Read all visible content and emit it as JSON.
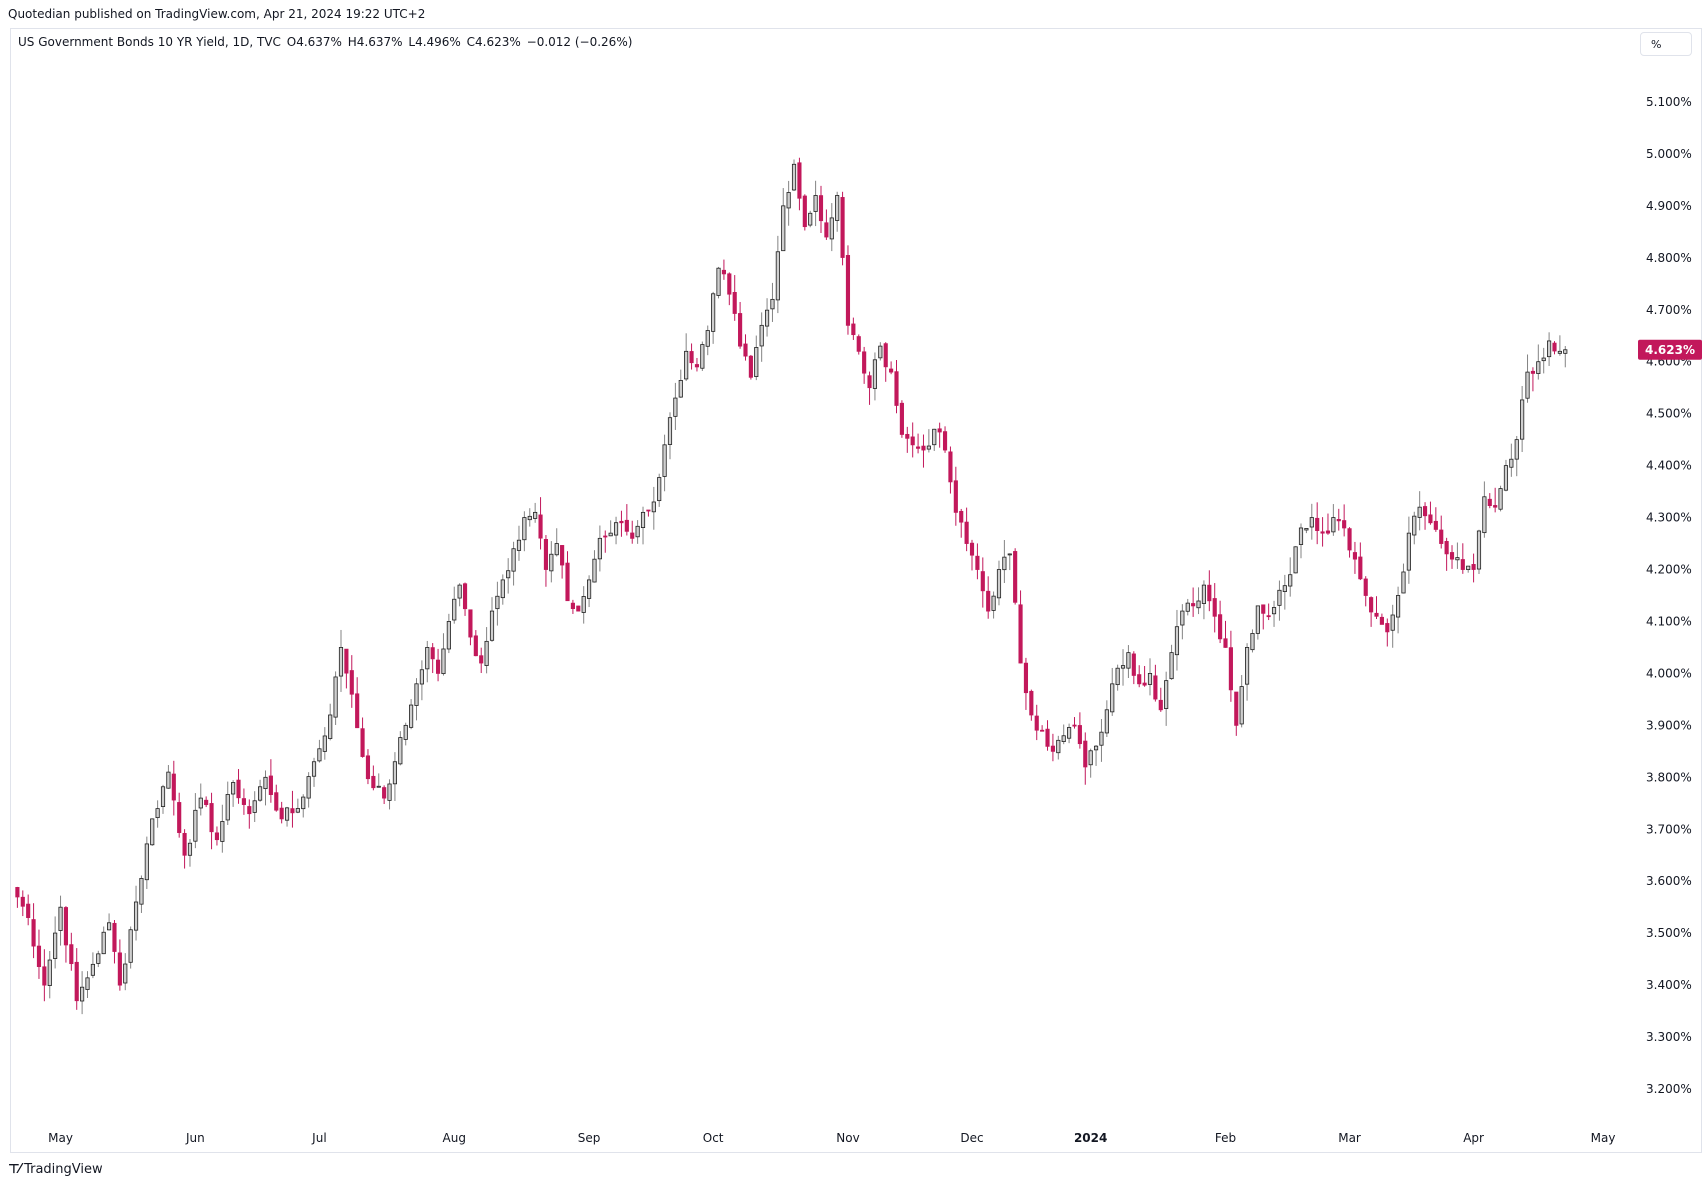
{
  "header": {
    "published": "Quotedian published on TradingView.com, Apr 21, 2024 19:22 UTC+2"
  },
  "legend": {
    "symbol": "US Government Bonds 10 YR Yield, 1D, TVC",
    "open": "O4.637%",
    "high": "H4.637%",
    "low": "L4.496%",
    "close": "C4.623%",
    "change": "−0.012 (−0.26%)"
  },
  "unit_button": "%",
  "footer": {
    "logo_icon": "tradingview-logo-icon",
    "brand": "TradingView"
  },
  "colors": {
    "up": "#838383",
    "down": "#c2185b",
    "grid": "#e0e3eb",
    "price_label": "#c2185b"
  },
  "last_price_label": "4.623%",
  "chart_data": {
    "type": "candlestick",
    "ylim": [
      3.15,
      5.2
    ],
    "y_ticks": [
      {
        "value": 5.1,
        "label": "5.100%"
      },
      {
        "value": 5.0,
        "label": "5.000%"
      },
      {
        "value": 4.9,
        "label": "4.900%"
      },
      {
        "value": 4.8,
        "label": "4.800%"
      },
      {
        "value": 4.7,
        "label": "4.700%"
      },
      {
        "value": 4.6,
        "label": "4.600%"
      },
      {
        "value": 4.5,
        "label": "4.500%"
      },
      {
        "value": 4.4,
        "label": "4.400%"
      },
      {
        "value": 4.3,
        "label": "4.300%"
      },
      {
        "value": 4.2,
        "label": "4.200%"
      },
      {
        "value": 4.1,
        "label": "4.100%"
      },
      {
        "value": 4.0,
        "label": "4.000%"
      },
      {
        "value": 3.9,
        "label": "3.900%"
      },
      {
        "value": 3.8,
        "label": "3.800%"
      },
      {
        "value": 3.7,
        "label": "3.700%"
      },
      {
        "value": 3.6,
        "label": "3.600%"
      },
      {
        "value": 3.5,
        "label": "3.500%"
      },
      {
        "value": 3.4,
        "label": "3.400%"
      },
      {
        "value": 3.3,
        "label": "3.300%"
      },
      {
        "value": 3.2,
        "label": "3.200%"
      }
    ],
    "x_ticks": [
      {
        "index": 9,
        "label": "May",
        "bold": false
      },
      {
        "index": 34,
        "label": "Jun",
        "bold": false
      },
      {
        "index": 57,
        "label": "Jul",
        "bold": false
      },
      {
        "index": 82,
        "label": "Aug",
        "bold": false
      },
      {
        "index": 107,
        "label": "Sep",
        "bold": false
      },
      {
        "index": 130,
        "label": "Oct",
        "bold": false
      },
      {
        "index": 155,
        "label": "Nov",
        "bold": false
      },
      {
        "index": 178,
        "label": "Dec",
        "bold": false
      },
      {
        "index": 200,
        "label": "2024",
        "bold": true
      },
      {
        "index": 225,
        "label": "Feb",
        "bold": false
      },
      {
        "index": 248,
        "label": "Mar",
        "bold": false
      },
      {
        "index": 271,
        "label": "Apr",
        "bold": false
      },
      {
        "index": 295,
        "label": "May",
        "bold": false
      }
    ],
    "x_range": [
      0,
      300
    ],
    "anchors": [
      [
        0,
        3.59
      ],
      [
        3,
        3.53
      ],
      [
        6,
        3.4
      ],
      [
        9,
        3.55
      ],
      [
        12,
        3.37
      ],
      [
        15,
        3.44
      ],
      [
        18,
        3.52
      ],
      [
        20,
        3.4
      ],
      [
        23,
        3.56
      ],
      [
        26,
        3.72
      ],
      [
        29,
        3.81
      ],
      [
        32,
        3.65
      ],
      [
        35,
        3.76
      ],
      [
        38,
        3.68
      ],
      [
        41,
        3.79
      ],
      [
        44,
        3.73
      ],
      [
        47,
        3.8
      ],
      [
        50,
        3.72
      ],
      [
        53,
        3.74
      ],
      [
        56,
        3.83
      ],
      [
        59,
        3.92
      ],
      [
        61,
        4.05
      ],
      [
        63,
        3.96
      ],
      [
        65,
        3.84
      ],
      [
        67,
        3.78
      ],
      [
        69,
        3.76
      ],
      [
        71,
        3.83
      ],
      [
        73,
        3.9
      ],
      [
        75,
        3.98
      ],
      [
        77,
        4.05
      ],
      [
        79,
        4.0
      ],
      [
        81,
        4.1
      ],
      [
        83,
        4.17
      ],
      [
        85,
        4.07
      ],
      [
        87,
        4.02
      ],
      [
        89,
        4.12
      ],
      [
        91,
        4.18
      ],
      [
        93,
        4.24
      ],
      [
        95,
        4.3
      ],
      [
        97,
        4.31
      ],
      [
        99,
        4.2
      ],
      [
        101,
        4.25
      ],
      [
        103,
        4.14
      ],
      [
        105,
        4.12
      ],
      [
        107,
        4.18
      ],
      [
        109,
        4.26
      ],
      [
        111,
        4.27
      ],
      [
        113,
        4.29
      ],
      [
        115,
        4.26
      ],
      [
        117,
        4.31
      ],
      [
        119,
        4.33
      ],
      [
        121,
        4.44
      ],
      [
        123,
        4.53
      ],
      [
        125,
        4.62
      ],
      [
        127,
        4.59
      ],
      [
        129,
        4.66
      ],
      [
        131,
        4.78
      ],
      [
        133,
        4.73
      ],
      [
        135,
        4.63
      ],
      [
        137,
        4.57
      ],
      [
        139,
        4.67
      ],
      [
        141,
        4.72
      ],
      [
        143,
        4.9
      ],
      [
        145,
        4.98
      ],
      [
        147,
        4.86
      ],
      [
        149,
        4.92
      ],
      [
        151,
        4.84
      ],
      [
        153,
        4.92
      ],
      [
        155,
        4.67
      ],
      [
        157,
        4.62
      ],
      [
        159,
        4.55
      ],
      [
        161,
        4.63
      ],
      [
        163,
        4.58
      ],
      [
        165,
        4.46
      ],
      [
        167,
        4.44
      ],
      [
        169,
        4.43
      ],
      [
        171,
        4.47
      ],
      [
        173,
        4.43
      ],
      [
        175,
        4.31
      ],
      [
        177,
        4.25
      ],
      [
        179,
        4.2
      ],
      [
        181,
        4.12
      ],
      [
        183,
        4.2
      ],
      [
        185,
        4.23
      ],
      [
        187,
        4.02
      ],
      [
        189,
        3.92
      ],
      [
        191,
        3.89
      ],
      [
        193,
        3.85
      ],
      [
        195,
        3.88
      ],
      [
        197,
        3.9
      ],
      [
        199,
        3.82
      ],
      [
        201,
        3.86
      ],
      [
        203,
        3.93
      ],
      [
        205,
        4.01
      ],
      [
        207,
        4.04
      ],
      [
        209,
        3.98
      ],
      [
        211,
        4.0
      ],
      [
        213,
        3.93
      ],
      [
        215,
        4.04
      ],
      [
        217,
        4.12
      ],
      [
        219,
        4.13
      ],
      [
        221,
        4.17
      ],
      [
        223,
        4.11
      ],
      [
        225,
        4.05
      ],
      [
        227,
        3.9
      ],
      [
        229,
        4.05
      ],
      [
        231,
        4.13
      ],
      [
        233,
        4.11
      ],
      [
        235,
        4.16
      ],
      [
        237,
        4.19
      ],
      [
        239,
        4.28
      ],
      [
        241,
        4.3
      ],
      [
        243,
        4.27
      ],
      [
        245,
        4.3
      ],
      [
        247,
        4.28
      ],
      [
        249,
        4.22
      ],
      [
        251,
        4.15
      ],
      [
        253,
        4.11
      ],
      [
        255,
        4.08
      ],
      [
        257,
        4.15
      ],
      [
        259,
        4.27
      ],
      [
        261,
        4.32
      ],
      [
        263,
        4.29
      ],
      [
        265,
        4.25
      ],
      [
        267,
        4.22
      ],
      [
        269,
        4.2
      ],
      [
        271,
        4.2
      ],
      [
        273,
        4.34
      ],
      [
        275,
        4.32
      ],
      [
        277,
        4.4
      ],
      [
        279,
        4.45
      ],
      [
        281,
        4.58
      ],
      [
        283,
        4.6
      ],
      [
        285,
        4.64
      ],
      [
        287,
        4.62
      ],
      [
        288,
        4.623
      ]
    ]
  }
}
